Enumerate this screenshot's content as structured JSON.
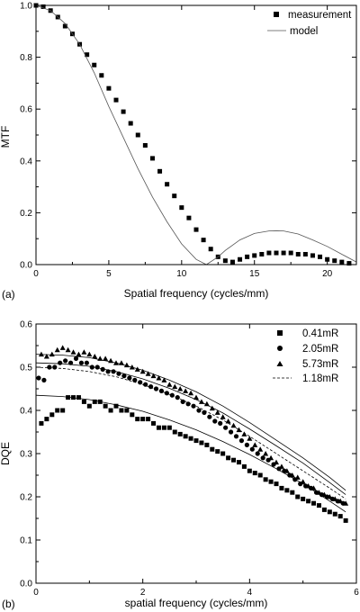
{
  "chart_data": [
    {
      "panel": "(a)",
      "type": "scatter",
      "xlabel": "Spatial frequency (cycles/mm)",
      "ylabel": "MTF",
      "xlim": [
        0,
        22
      ],
      "ylim": [
        0,
        1.0
      ],
      "xticks": [
        "0",
        "5",
        "10",
        "15",
        "20"
      ],
      "yticks": [
        "0.0",
        "0.2",
        "0.4",
        "0.6",
        "0.8",
        "1.0"
      ],
      "legend_position": "top-right",
      "series": [
        {
          "name": "measurement",
          "marker": "square",
          "x": [
            0,
            0.5,
            1.0,
            1.5,
            2.0,
            2.5,
            3.0,
            3.5,
            4.0,
            4.5,
            5.0,
            5.5,
            6.0,
            6.5,
            7.0,
            7.5,
            8.0,
            8.5,
            9.0,
            9.5,
            10.0,
            10.5,
            11.0,
            11.5,
            12.0,
            12.5,
            13.0,
            13.5,
            14.0,
            14.5,
            15.0,
            15.5,
            16.0,
            16.5,
            17.0,
            17.5,
            18.0,
            18.5,
            19.0,
            19.5,
            20.0,
            20.5,
            21.0,
            21.5
          ],
          "y": [
            1.0,
            0.995,
            0.98,
            0.955,
            0.92,
            0.89,
            0.85,
            0.81,
            0.77,
            0.73,
            0.68,
            0.635,
            0.59,
            0.545,
            0.5,
            0.46,
            0.41,
            0.36,
            0.31,
            0.265,
            0.22,
            0.18,
            0.135,
            0.095,
            0.06,
            0.03,
            0.015,
            0.01,
            0.02,
            0.03,
            0.035,
            0.04,
            0.045,
            0.045,
            0.045,
            0.045,
            0.04,
            0.04,
            0.035,
            0.03,
            0.02,
            0.015,
            0.01,
            0.005
          ]
        },
        {
          "name": "model",
          "line": "solid-thin",
          "x": [
            0,
            1,
            2,
            3,
            4,
            5,
            6,
            7,
            8,
            9,
            10,
            11,
            11.7,
            12.5,
            13,
            14,
            15,
            16,
            16.5,
            17,
            18,
            19,
            20,
            21,
            22
          ],
          "y": [
            1.0,
            0.98,
            0.93,
            0.85,
            0.74,
            0.61,
            0.49,
            0.37,
            0.26,
            0.165,
            0.08,
            0.02,
            0.0,
            0.03,
            0.055,
            0.095,
            0.12,
            0.13,
            0.131,
            0.13,
            0.118,
            0.095,
            0.07,
            0.04,
            0.01
          ]
        }
      ]
    },
    {
      "panel": "(b)",
      "type": "scatter",
      "xlabel": "spatial frequency (cycles/mm)",
      "ylabel": "DQE",
      "xlim": [
        0,
        6
      ],
      "ylim": [
        0,
        0.6
      ],
      "xticks": [
        "0",
        "2",
        "4",
        "6"
      ],
      "yticks": [
        "0.0",
        "0.1",
        "0.2",
        "0.3",
        "0.4",
        "0.5",
        "0.6"
      ],
      "legend_position": "top-right",
      "series": [
        {
          "name": "0.41mR",
          "marker": "square",
          "x": [
            0.1,
            0.2,
            0.3,
            0.4,
            0.5,
            0.6,
            0.7,
            0.8,
            0.9,
            1.0,
            1.1,
            1.2,
            1.3,
            1.4,
            1.5,
            1.6,
            1.7,
            1.8,
            1.9,
            2.0,
            2.1,
            2.2,
            2.3,
            2.4,
            2.5,
            2.6,
            2.7,
            2.8,
            2.9,
            3.0,
            3.1,
            3.2,
            3.3,
            3.4,
            3.5,
            3.6,
            3.7,
            3.8,
            3.9,
            4.0,
            4.1,
            4.2,
            4.3,
            4.4,
            4.5,
            4.6,
            4.7,
            4.8,
            4.9,
            5.0,
            5.1,
            5.2,
            5.3,
            5.4,
            5.5,
            5.6,
            5.7,
            5.8
          ],
          "y": [
            0.37,
            0.38,
            0.39,
            0.4,
            0.4,
            0.43,
            0.43,
            0.43,
            0.42,
            0.41,
            0.42,
            0.42,
            0.41,
            0.4,
            0.41,
            0.4,
            0.4,
            0.39,
            0.38,
            0.38,
            0.38,
            0.37,
            0.36,
            0.36,
            0.36,
            0.35,
            0.345,
            0.34,
            0.335,
            0.33,
            0.325,
            0.32,
            0.31,
            0.305,
            0.3,
            0.29,
            0.285,
            0.28,
            0.27,
            0.26,
            0.255,
            0.25,
            0.24,
            0.235,
            0.23,
            0.22,
            0.215,
            0.21,
            0.2,
            0.195,
            0.19,
            0.185,
            0.18,
            0.17,
            0.165,
            0.16,
            0.155,
            0.145
          ]
        },
        {
          "name": "2.05mR",
          "marker": "circle",
          "x": [
            0.05,
            0.15,
            0.25,
            0.35,
            0.45,
            0.55,
            0.65,
            0.75,
            0.85,
            0.95,
            1.05,
            1.15,
            1.25,
            1.35,
            1.45,
            1.55,
            1.65,
            1.75,
            1.85,
            1.95,
            2.05,
            2.15,
            2.25,
            2.35,
            2.45,
            2.55,
            2.65,
            2.75,
            2.85,
            2.95,
            3.05,
            3.15,
            3.25,
            3.35,
            3.45,
            3.55,
            3.65,
            3.75,
            3.85,
            3.95,
            4.05,
            4.15,
            4.25,
            4.35,
            4.45,
            4.55,
            4.65,
            4.75,
            4.85,
            4.95,
            5.05,
            5.15,
            5.25,
            5.35,
            5.45,
            5.55,
            5.65,
            5.75
          ],
          "y": [
            0.475,
            0.47,
            0.5,
            0.5,
            0.51,
            0.515,
            0.51,
            0.52,
            0.51,
            0.51,
            0.5,
            0.5,
            0.495,
            0.49,
            0.49,
            0.485,
            0.48,
            0.475,
            0.47,
            0.465,
            0.46,
            0.455,
            0.45,
            0.445,
            0.44,
            0.435,
            0.43,
            0.42,
            0.415,
            0.41,
            0.4,
            0.395,
            0.385,
            0.375,
            0.37,
            0.36,
            0.35,
            0.34,
            0.33,
            0.32,
            0.31,
            0.3,
            0.29,
            0.285,
            0.275,
            0.265,
            0.26,
            0.25,
            0.24,
            0.23,
            0.225,
            0.22,
            0.21,
            0.205,
            0.2,
            0.195,
            0.19,
            0.185
          ]
        },
        {
          "name": "5.73mR",
          "marker": "triangle",
          "x": [
            0.1,
            0.2,
            0.3,
            0.4,
            0.5,
            0.6,
            0.7,
            0.8,
            0.9,
            1.0,
            1.1,
            1.2,
            1.3,
            1.4,
            1.5,
            1.6,
            1.7,
            1.8,
            1.9,
            2.0,
            2.1,
            2.2,
            2.3,
            2.4,
            2.5,
            2.6,
            2.7,
            2.8,
            2.9,
            3.0,
            3.1,
            3.2,
            3.3,
            3.4,
            3.5,
            3.6,
            3.7,
            3.8,
            3.9,
            4.0,
            4.1,
            4.2,
            4.3,
            4.4,
            4.5,
            4.6,
            4.7,
            4.8,
            4.9,
            5.0,
            5.1,
            5.2,
            5.3,
            5.4,
            5.5,
            5.6,
            5.7,
            5.8
          ],
          "y": [
            0.53,
            0.525,
            0.53,
            0.54,
            0.545,
            0.54,
            0.535,
            0.53,
            0.535,
            0.53,
            0.525,
            0.52,
            0.52,
            0.515,
            0.51,
            0.51,
            0.505,
            0.5,
            0.495,
            0.49,
            0.485,
            0.48,
            0.475,
            0.47,
            0.46,
            0.455,
            0.45,
            0.445,
            0.44,
            0.43,
            0.42,
            0.415,
            0.405,
            0.395,
            0.385,
            0.375,
            0.365,
            0.355,
            0.345,
            0.335,
            0.32,
            0.31,
            0.3,
            0.29,
            0.28,
            0.27,
            0.26,
            0.25,
            0.245,
            0.235,
            0.225,
            0.22,
            0.21,
            0.205,
            0.2,
            0.195,
            0.19,
            0.185
          ]
        },
        {
          "name": "1.18mR",
          "line": "dashed",
          "x": [
            0,
            0.5,
            1.0,
            1.5,
            2.0,
            2.5,
            3.0,
            3.5,
            4.0,
            4.5,
            5.0,
            5.5,
            5.8
          ],
          "y": [
            0.5,
            0.497,
            0.49,
            0.478,
            0.46,
            0.437,
            0.41,
            0.378,
            0.34,
            0.3,
            0.26,
            0.22,
            0.195
          ]
        },
        {
          "line": "solid-thin",
          "x": [
            0,
            0.5,
            1.0,
            1.5,
            2.0,
            2.5,
            3.0,
            3.5,
            4.0,
            4.5,
            5.0,
            5.5,
            5.8
          ],
          "y": [
            0.435,
            0.432,
            0.425,
            0.413,
            0.398,
            0.378,
            0.355,
            0.328,
            0.298,
            0.265,
            0.23,
            0.19,
            0.165
          ]
        },
        {
          "line": "solid-thin",
          "x": [
            0,
            0.5,
            1.0,
            1.5,
            2.0,
            2.5,
            3.0,
            3.5,
            4.0,
            4.5,
            5.0,
            5.5,
            5.8
          ],
          "y": [
            0.51,
            0.508,
            0.502,
            0.49,
            0.473,
            0.451,
            0.425,
            0.394,
            0.357,
            0.318,
            0.278,
            0.233,
            0.205
          ]
        },
        {
          "line": "solid-thin",
          "x": [
            0,
            0.5,
            1.0,
            1.5,
            2.0,
            2.5,
            3.0,
            3.5,
            4.0,
            4.5,
            5.0,
            5.5,
            5.8
          ],
          "y": [
            0.53,
            0.528,
            0.522,
            0.51,
            0.493,
            0.47,
            0.443,
            0.41,
            0.372,
            0.331,
            0.29,
            0.245,
            0.215
          ]
        }
      ]
    }
  ]
}
